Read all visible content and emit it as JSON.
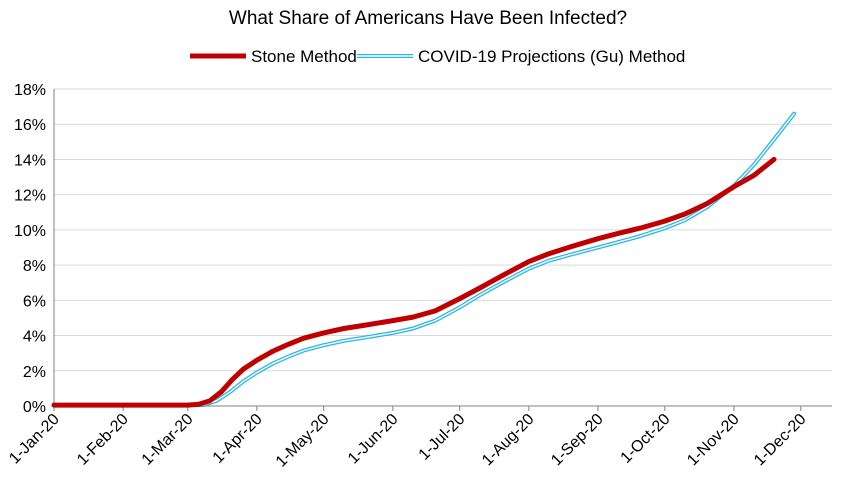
{
  "chart_data": {
    "type": "line",
    "title": "What Share of Americans Have Been Infected?",
    "xlabel": "",
    "ylabel": "",
    "x_tick_labels": [
      "1-Jan-20",
      "1-Feb-20",
      "1-Mar-20",
      "1-Apr-20",
      "1-May-20",
      "1-Jun-20",
      "1-Jul-20",
      "1-Aug-20",
      "1-Sep-20",
      "1-Oct-20",
      "1-Nov-20",
      "1-Dec-20"
    ],
    "x_ticks": [
      "2020-01-01",
      "2020-02-01",
      "2020-03-01",
      "2020-04-01",
      "2020-05-01",
      "2020-06-01",
      "2020-07-01",
      "2020-08-01",
      "2020-09-01",
      "2020-10-01",
      "2020-11-01",
      "2020-12-01"
    ],
    "xlim": [
      "2020-01-01",
      "2020-12-15"
    ],
    "y_tick_labels": [
      "0%",
      "2%",
      "4%",
      "6%",
      "8%",
      "10%",
      "12%",
      "14%",
      "16%",
      "18%"
    ],
    "ylim": [
      0,
      18
    ],
    "y_unit": "%",
    "grid": "horizontal",
    "legend_position": "top",
    "series": [
      {
        "name": "Stone Method",
        "color": "#c00000",
        "style": "thick-solid",
        "points": [
          [
            "2020-01-01",
            0.05
          ],
          [
            "2020-02-01",
            0.05
          ],
          [
            "2020-03-01",
            0.05
          ],
          [
            "2020-03-06",
            0.1
          ],
          [
            "2020-03-11",
            0.3
          ],
          [
            "2020-03-16",
            0.8
          ],
          [
            "2020-03-21",
            1.5
          ],
          [
            "2020-03-26",
            2.1
          ],
          [
            "2020-04-01",
            2.6
          ],
          [
            "2020-04-08",
            3.1
          ],
          [
            "2020-04-15",
            3.5
          ],
          [
            "2020-04-22",
            3.85
          ],
          [
            "2020-05-01",
            4.15
          ],
          [
            "2020-05-10",
            4.4
          ],
          [
            "2020-05-20",
            4.6
          ],
          [
            "2020-06-01",
            4.85
          ],
          [
            "2020-06-10",
            5.05
          ],
          [
            "2020-06-20",
            5.4
          ],
          [
            "2020-07-01",
            6.1
          ],
          [
            "2020-07-10",
            6.7
          ],
          [
            "2020-07-20",
            7.4
          ],
          [
            "2020-08-01",
            8.2
          ],
          [
            "2020-08-10",
            8.65
          ],
          [
            "2020-08-20",
            9.05
          ],
          [
            "2020-09-01",
            9.5
          ],
          [
            "2020-09-10",
            9.8
          ],
          [
            "2020-09-20",
            10.1
          ],
          [
            "2020-10-01",
            10.5
          ],
          [
            "2020-10-10",
            10.9
          ],
          [
            "2020-10-20",
            11.5
          ],
          [
            "2020-11-01",
            12.45
          ],
          [
            "2020-11-10",
            13.1
          ],
          [
            "2020-11-19",
            14.0
          ]
        ]
      },
      {
        "name": "COVID-19 Projections (Gu) Method",
        "color": "#29b6e6",
        "style": "double-outline",
        "points": [
          [
            "2020-01-01",
            0.05
          ],
          [
            "2020-02-01",
            0.05
          ],
          [
            "2020-03-01",
            0.05
          ],
          [
            "2020-03-08",
            0.05
          ],
          [
            "2020-03-14",
            0.3
          ],
          [
            "2020-03-20",
            0.8
          ],
          [
            "2020-03-26",
            1.4
          ],
          [
            "2020-04-01",
            1.9
          ],
          [
            "2020-04-08",
            2.4
          ],
          [
            "2020-04-15",
            2.8
          ],
          [
            "2020-04-22",
            3.15
          ],
          [
            "2020-05-01",
            3.45
          ],
          [
            "2020-05-10",
            3.7
          ],
          [
            "2020-05-20",
            3.9
          ],
          [
            "2020-06-01",
            4.15
          ],
          [
            "2020-06-10",
            4.4
          ],
          [
            "2020-06-20",
            4.85
          ],
          [
            "2020-07-01",
            5.6
          ],
          [
            "2020-07-10",
            6.3
          ],
          [
            "2020-07-20",
            7.0
          ],
          [
            "2020-08-01",
            7.8
          ],
          [
            "2020-08-10",
            8.25
          ],
          [
            "2020-08-20",
            8.6
          ],
          [
            "2020-09-01",
            9.0
          ],
          [
            "2020-09-10",
            9.3
          ],
          [
            "2020-09-20",
            9.65
          ],
          [
            "2020-10-01",
            10.1
          ],
          [
            "2020-10-10",
            10.55
          ],
          [
            "2020-10-20",
            11.3
          ],
          [
            "2020-11-01",
            12.5
          ],
          [
            "2020-11-10",
            13.7
          ],
          [
            "2020-11-20",
            15.3
          ],
          [
            "2020-11-28",
            16.6
          ]
        ]
      }
    ]
  }
}
